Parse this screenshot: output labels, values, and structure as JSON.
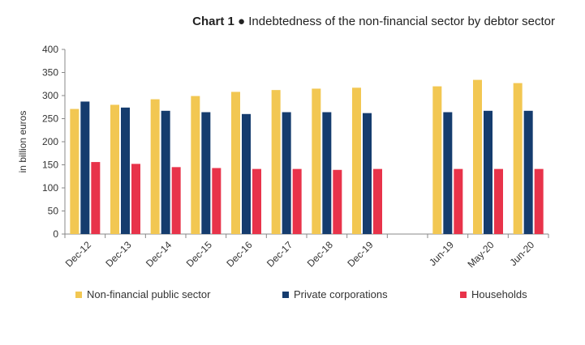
{
  "chart_title": {
    "prefix": "Chart 1",
    "bullet": "●",
    "text": "Indebtedness  of the non-financial  sector  by debtor sector"
  },
  "chart_data": {
    "type": "bar",
    "categories": [
      "Dec-12",
      "Dec-13",
      "Dec-14",
      "Dec-15",
      "Dec-16",
      "Dec-17",
      "Dec-18",
      "Dec-19",
      "",
      "Jun-19",
      "May-20",
      "Jun-20"
    ],
    "series": [
      {
        "name": "Non-financial public sector",
        "color": "#f2c752",
        "values": [
          271,
          280,
          292,
          299,
          308,
          312,
          315,
          317,
          null,
          320,
          334,
          327
        ]
      },
      {
        "name": "Private corporations",
        "color": "#153c6e",
        "values": [
          287,
          274,
          267,
          264,
          260,
          264,
          264,
          262,
          null,
          264,
          267,
          267
        ]
      },
      {
        "name": "Households",
        "color": "#e8334a",
        "values": [
          156,
          152,
          145,
          143,
          141,
          141,
          139,
          141,
          null,
          141,
          141,
          141
        ]
      }
    ],
    "ylabel": "in billion euros",
    "xlabel": "",
    "ylim": [
      0,
      400
    ],
    "yticks": [
      0,
      50,
      100,
      150,
      200,
      250,
      300,
      350,
      400
    ],
    "grid": false,
    "legend_position": "bottom"
  }
}
